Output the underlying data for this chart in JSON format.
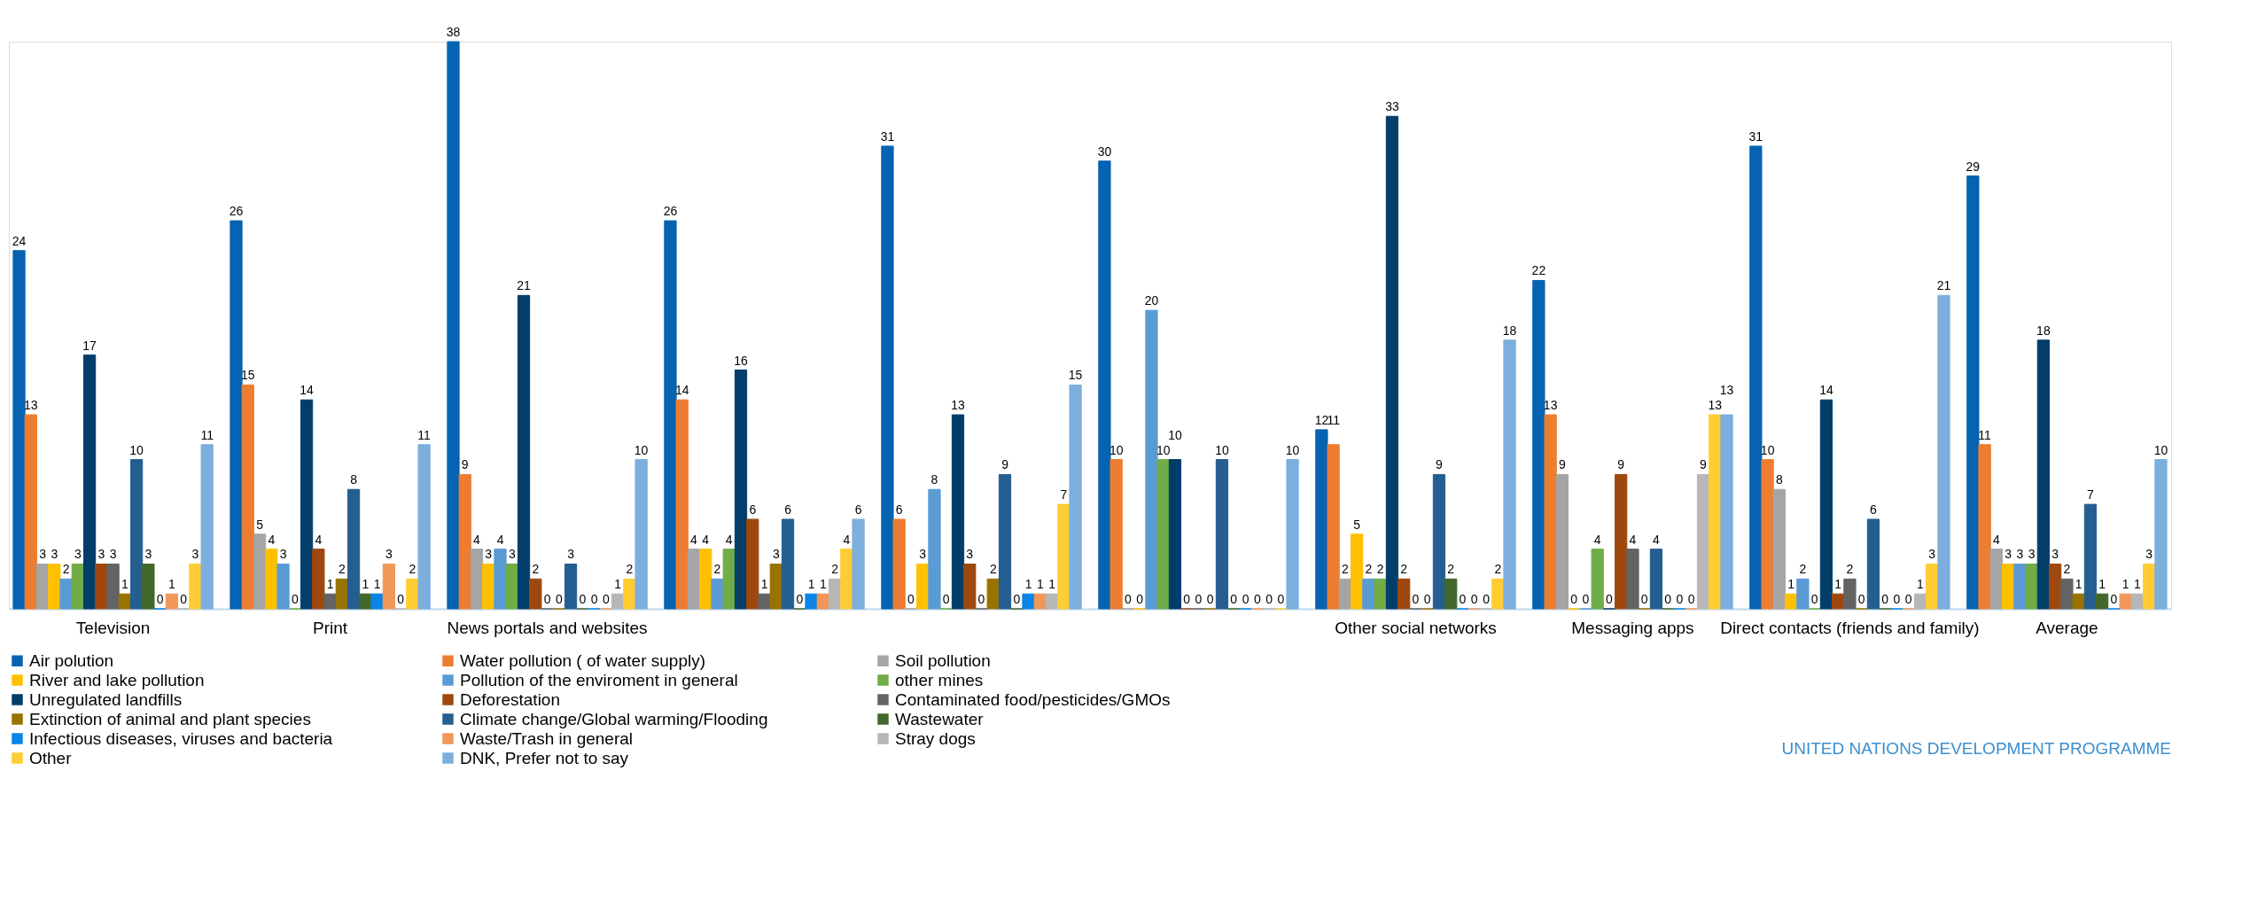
{
  "chart_data": {
    "type": "bar",
    "categories": [
      "Television",
      "Print",
      "News portals and websites",
      null,
      null,
      null,
      "Other social networks",
      "Messaging apps",
      "Direct contacts (friends and family)",
      "Average"
    ],
    "series": [
      {
        "name": "Air polution",
        "color": "#0563b1",
        "values": [
          24,
          26,
          38,
          26,
          31,
          30,
          12,
          22,
          31,
          29
        ]
      },
      {
        "name": "Water pollution ( of water supply)",
        "color": "#ed7d31",
        "values": [
          13,
          15,
          9,
          14,
          6,
          10,
          11,
          13,
          10,
          11
        ]
      },
      {
        "name": "Soil pollution",
        "color": "#a5a5a5",
        "values": [
          3,
          5,
          4,
          4,
          0,
          0,
          2,
          9,
          8,
          4
        ]
      },
      {
        "name": "River and lake pollution",
        "color": "#ffc000",
        "values": [
          3,
          4,
          3,
          4,
          3,
          0,
          5,
          0,
          1,
          3
        ]
      },
      {
        "name": "Pollution of the enviroment in general",
        "color": "#5b9bd5",
        "values": [
          2,
          3,
          4,
          2,
          8,
          20,
          2,
          0,
          2,
          3
        ]
      },
      {
        "name": "other mines",
        "color": "#70ad47",
        "values": [
          3,
          0,
          3,
          4,
          0,
          10,
          2,
          4,
          0,
          3
        ]
      },
      {
        "name": "Unregulated landfills",
        "color": "#033d6a",
        "values": [
          17,
          14,
          21,
          16,
          13,
          10,
          33,
          0,
          14,
          18
        ]
      },
      {
        "name": "Deforestation",
        "color": "#9e480e",
        "values": [
          3,
          4,
          2,
          6,
          3,
          0,
          2,
          9,
          1,
          3
        ]
      },
      {
        "name": "Contaminated food/pesticides/GMOs",
        "color": "#636363",
        "values": [
          3,
          1,
          0,
          1,
          0,
          0,
          0,
          4,
          2,
          2
        ]
      },
      {
        "name": "Extinction of animal and plant species",
        "color": "#997300",
        "values": [
          1,
          2,
          0,
          3,
          2,
          0,
          0,
          0,
          0,
          1
        ]
      },
      {
        "name": "Climate change/Global warming/Flooding",
        "color": "#255e91",
        "values": [
          10,
          8,
          3,
          6,
          9,
          10,
          9,
          4,
          6,
          7
        ]
      },
      {
        "name": "Wastewater",
        "color": "#43682b",
        "values": [
          3,
          1,
          0,
          0,
          0,
          0,
          2,
          0,
          0,
          1
        ]
      },
      {
        "name": "Infectious diseases, viruses and bacteria",
        "color": "#0a84e6",
        "values": [
          0,
          1,
          0,
          1,
          1,
          0,
          0,
          0,
          0,
          0
        ]
      },
      {
        "name": "Waste/Trash in general",
        "color": "#f1975a",
        "values": [
          1,
          3,
          0,
          1,
          1,
          0,
          0,
          0,
          0,
          1
        ]
      },
      {
        "name": "Stray dogs",
        "color": "#b7b7b7",
        "values": [
          0,
          0,
          1,
          2,
          1,
          0,
          0,
          9,
          1,
          1
        ]
      },
      {
        "name": "Other",
        "color": "#ffcd33",
        "values": [
          3,
          2,
          2,
          4,
          7,
          0,
          2,
          13,
          3,
          3
        ]
      },
      {
        "name": "DNK, Prefer not to say",
        "color": "#7cafdd",
        "values": [
          11,
          11,
          10,
          6,
          15,
          10,
          18,
          13,
          21,
          10
        ]
      }
    ],
    "data_labels": true,
    "grid": false,
    "legend": "bottom",
    "annotations": [
      "UNITED NATIONS DEVELOPMENT PROGRAMME"
    ]
  }
}
